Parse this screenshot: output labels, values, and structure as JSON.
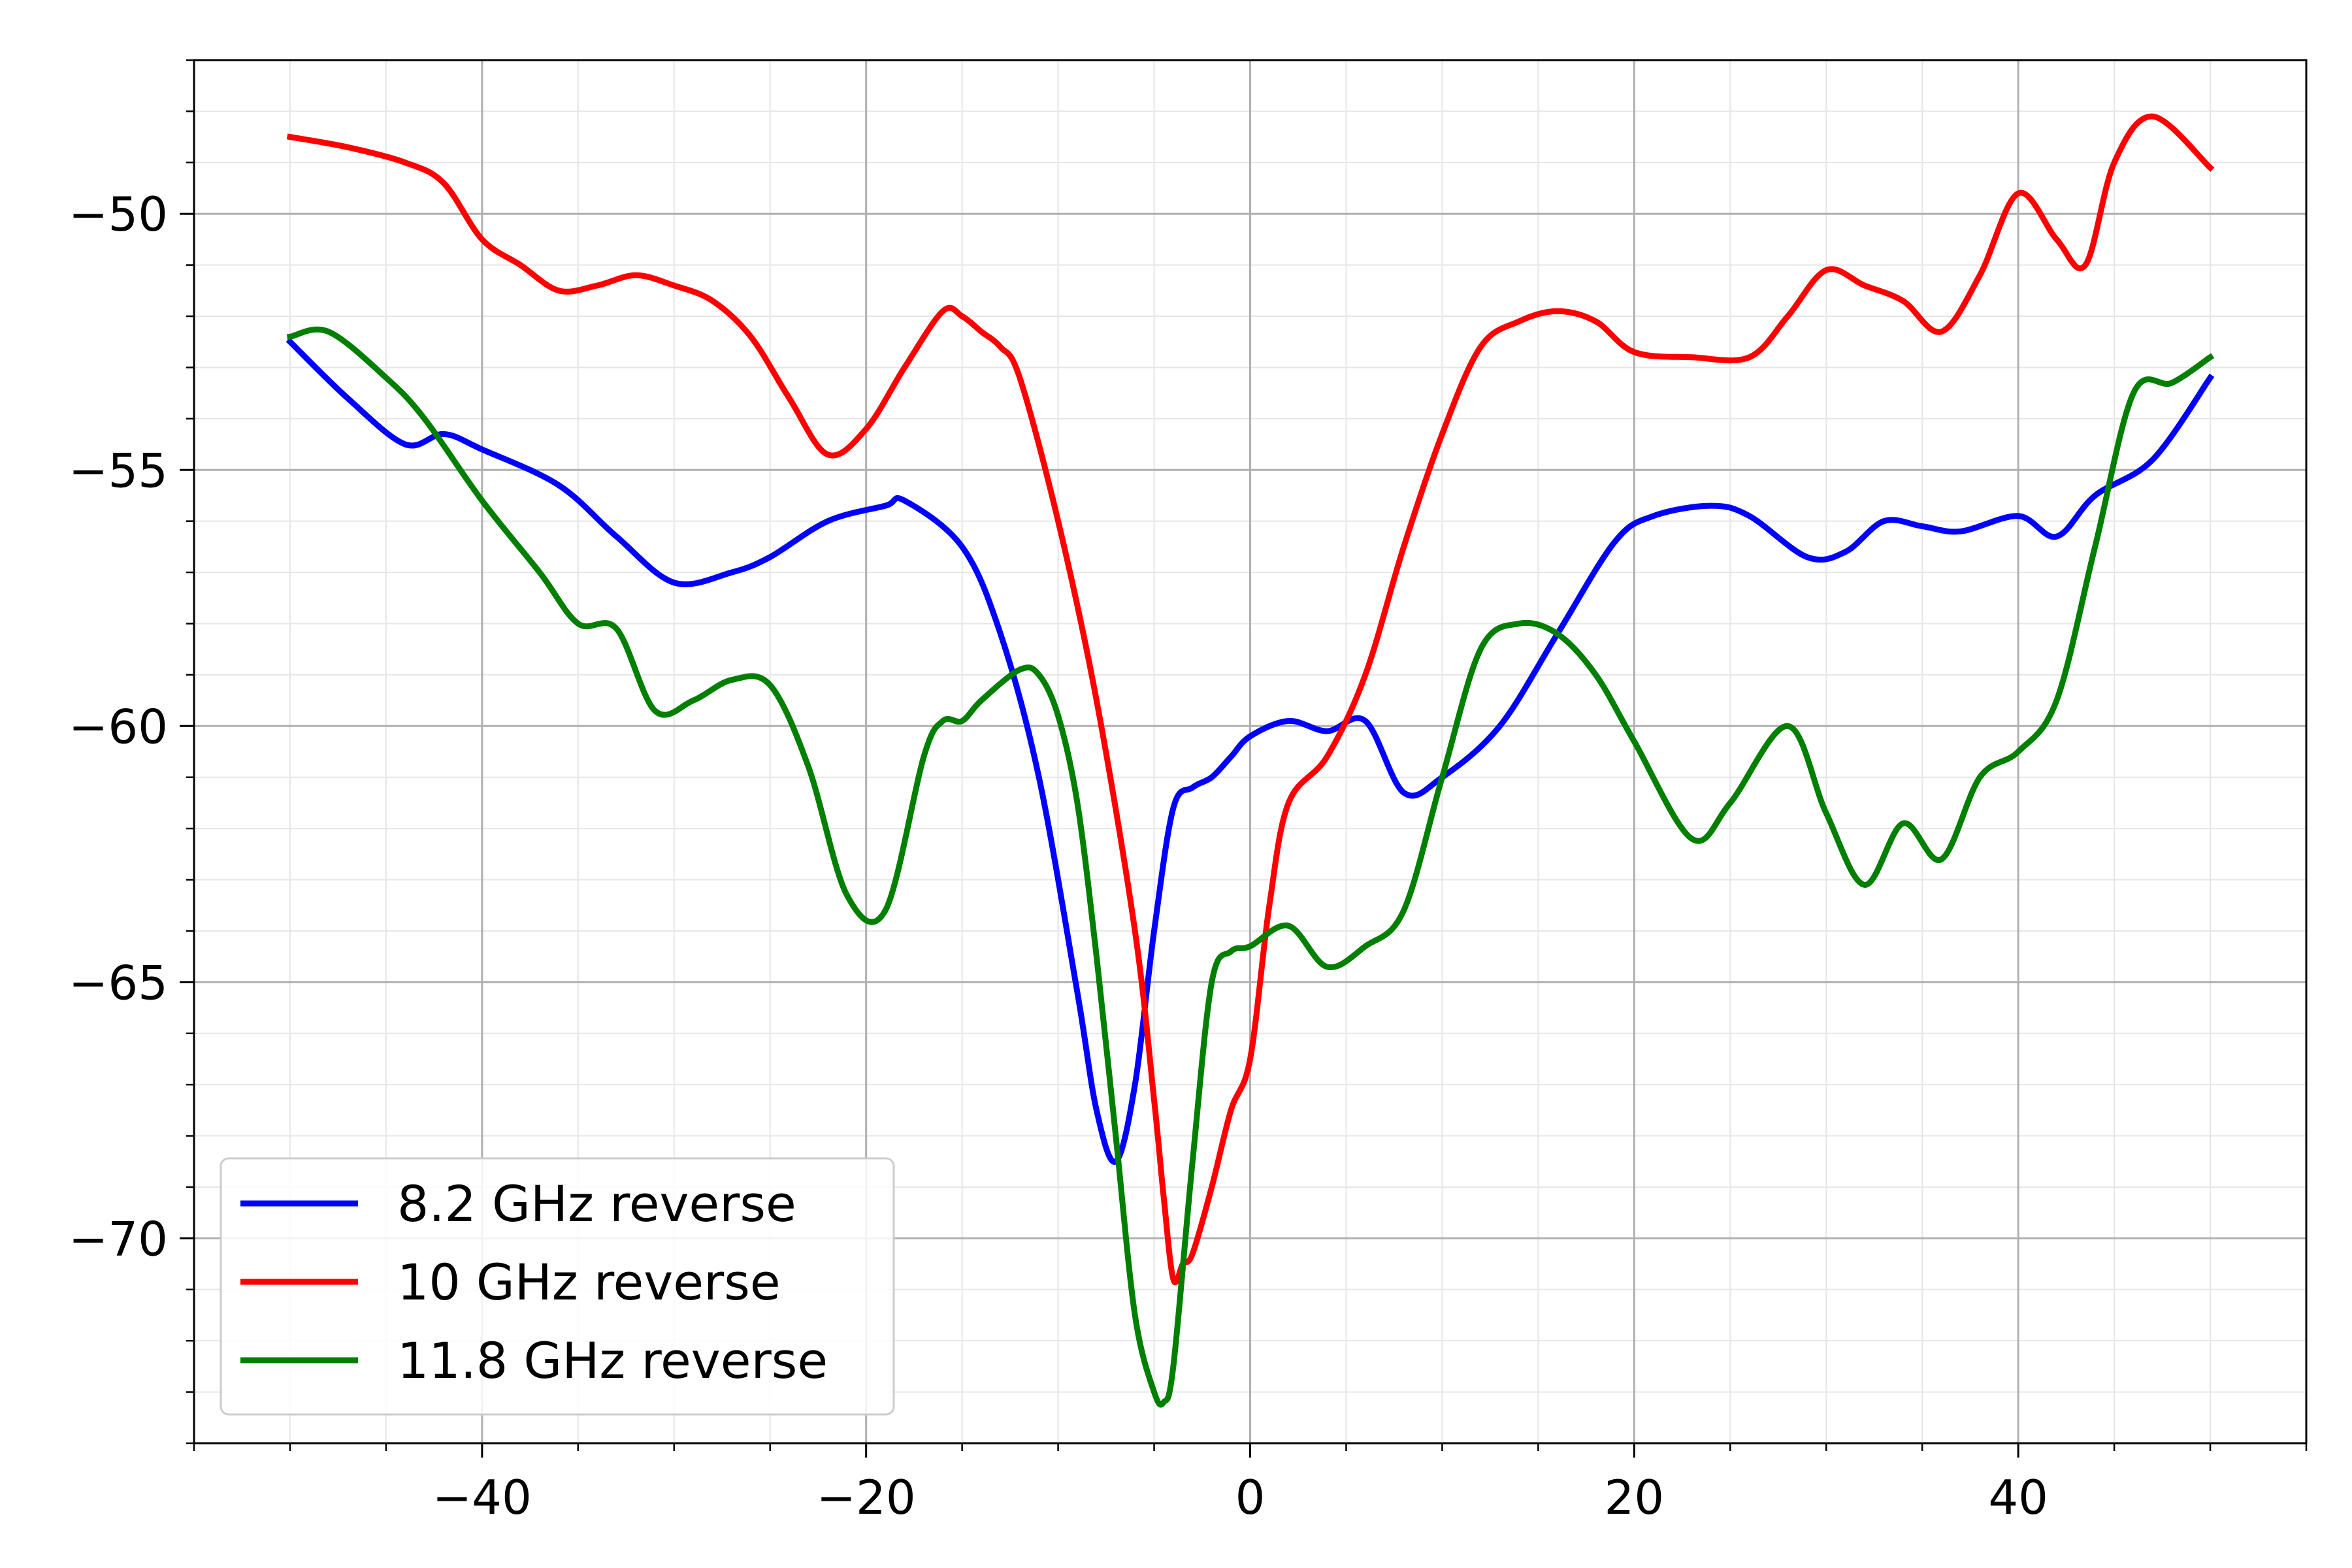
{
  "chart_data": {
    "type": "line",
    "title": "",
    "xlabel": "",
    "ylabel": "",
    "xlim": [
      -55,
      55
    ],
    "ylim": [
      -74,
      -47
    ],
    "xticks": [
      -40,
      -20,
      0,
      20,
      40
    ],
    "yticks": [
      -70,
      -65,
      -60,
      -55,
      -50
    ],
    "xtick_labels": [
      "−40",
      "−20",
      "0",
      "20",
      "40"
    ],
    "ytick_labels": [
      "−70",
      "−65",
      "−60",
      "−55",
      "−50"
    ],
    "grid": true,
    "minor_grid": true,
    "legend_position": "lower-left",
    "series": [
      {
        "name": "8.2 GHz reverse",
        "color": "#0000ff",
        "x": [
          -50,
          -47,
          -44,
          -42,
          -40,
          -36,
          -33,
          -30,
          -27,
          -25,
          -22,
          -19,
          -18,
          -15,
          -13,
          -11,
          -9,
          -8,
          -7,
          -6,
          -5,
          -4,
          -3,
          -2,
          -1,
          0,
          2,
          4,
          6,
          8,
          10,
          13,
          16,
          19,
          21,
          24,
          26,
          29,
          31,
          33,
          35,
          37,
          40,
          42,
          44,
          47,
          50
        ],
        "y": [
          -52.5,
          -53.6,
          -54.5,
          -54.3,
          -54.6,
          -55.3,
          -56.3,
          -57.2,
          -57.0,
          -56.7,
          -56.0,
          -55.7,
          -55.6,
          -56.5,
          -58.2,
          -61.0,
          -65.2,
          -67.5,
          -68.5,
          -67.0,
          -64.0,
          -61.6,
          -61.2,
          -61.0,
          -60.6,
          -60.2,
          -59.9,
          -60.1,
          -59.9,
          -61.3,
          -61.0,
          -60.0,
          -58.2,
          -56.4,
          -55.9,
          -55.7,
          -55.9,
          -56.7,
          -56.6,
          -56.0,
          -56.1,
          -56.2,
          -55.9,
          -56.3,
          -55.5,
          -54.8,
          -53.2
        ]
      },
      {
        "name": "10 GHz reverse",
        "color": "#ff0000",
        "x": [
          -50,
          -47,
          -44,
          -42,
          -40,
          -38,
          -36,
          -34,
          -32,
          -30,
          -28,
          -26,
          -24,
          -22,
          -20,
          -18,
          -16,
          -15,
          -14,
          -13,
          -12,
          -10,
          -8,
          -6,
          -5,
          -4.5,
          -4,
          -3.5,
          -3,
          -2,
          -1,
          0,
          1,
          2,
          4,
          6,
          8,
          10,
          12,
          14,
          16,
          18,
          20,
          23,
          26,
          28,
          30,
          32,
          34,
          36,
          38,
          40,
          42,
          43.5,
          45,
          47,
          50
        ],
        "y": [
          -48.5,
          -48.7,
          -49.0,
          -49.4,
          -50.5,
          -51.0,
          -51.5,
          -51.4,
          -51.2,
          -51.4,
          -51.7,
          -52.4,
          -53.6,
          -54.7,
          -54.2,
          -53.0,
          -51.9,
          -52.0,
          -52.3,
          -52.6,
          -53.2,
          -56.0,
          -59.5,
          -64.0,
          -67.3,
          -69.2,
          -70.8,
          -70.5,
          -70.3,
          -69.0,
          -67.5,
          -66.5,
          -63.5,
          -61.5,
          -60.6,
          -59.0,
          -56.5,
          -54.3,
          -52.6,
          -52.1,
          -51.9,
          -52.1,
          -52.7,
          -52.8,
          -52.8,
          -52.0,
          -51.1,
          -51.4,
          -51.7,
          -52.3,
          -51.2,
          -49.6,
          -50.5,
          -51.0,
          -49.0,
          -48.1,
          -49.1
        ]
      },
      {
        "name": "11.8 GHz reverse",
        "color": "#007f00",
        "x": [
          -50,
          -48,
          -45,
          -43,
          -40,
          -37,
          -35,
          -33,
          -31,
          -29,
          -27,
          -25,
          -23,
          -21,
          -19,
          -17,
          -16,
          -15,
          -14,
          -12,
          -11,
          -10,
          -9,
          -8,
          -7,
          -6,
          -5,
          -4.5,
          -4,
          -3,
          -2,
          -1,
          0,
          2,
          4,
          6,
          8,
          10,
          12,
          14,
          16,
          18,
          20,
          23,
          25,
          28,
          30,
          32,
          34,
          36,
          38,
          40,
          42,
          44,
          46,
          48,
          50
        ],
        "y": [
          -52.4,
          -52.3,
          -53.2,
          -54.0,
          -55.6,
          -57.0,
          -58.0,
          -58.1,
          -59.7,
          -59.5,
          -59.1,
          -59.2,
          -60.8,
          -63.3,
          -63.6,
          -60.6,
          -59.9,
          -59.9,
          -59.5,
          -58.9,
          -59.0,
          -59.8,
          -61.5,
          -64.5,
          -68.0,
          -71.5,
          -73.0,
          -73.2,
          -72.5,
          -68.5,
          -65.0,
          -64.4,
          -64.3,
          -63.9,
          -64.7,
          -64.3,
          -63.6,
          -61.0,
          -58.5,
          -58.0,
          -58.2,
          -59.0,
          -60.3,
          -62.2,
          -61.5,
          -60.0,
          -61.7,
          -63.1,
          -61.9,
          -62.6,
          -61.0,
          -60.5,
          -59.5,
          -56.5,
          -53.5,
          -53.3,
          -52.8
        ]
      }
    ]
  }
}
